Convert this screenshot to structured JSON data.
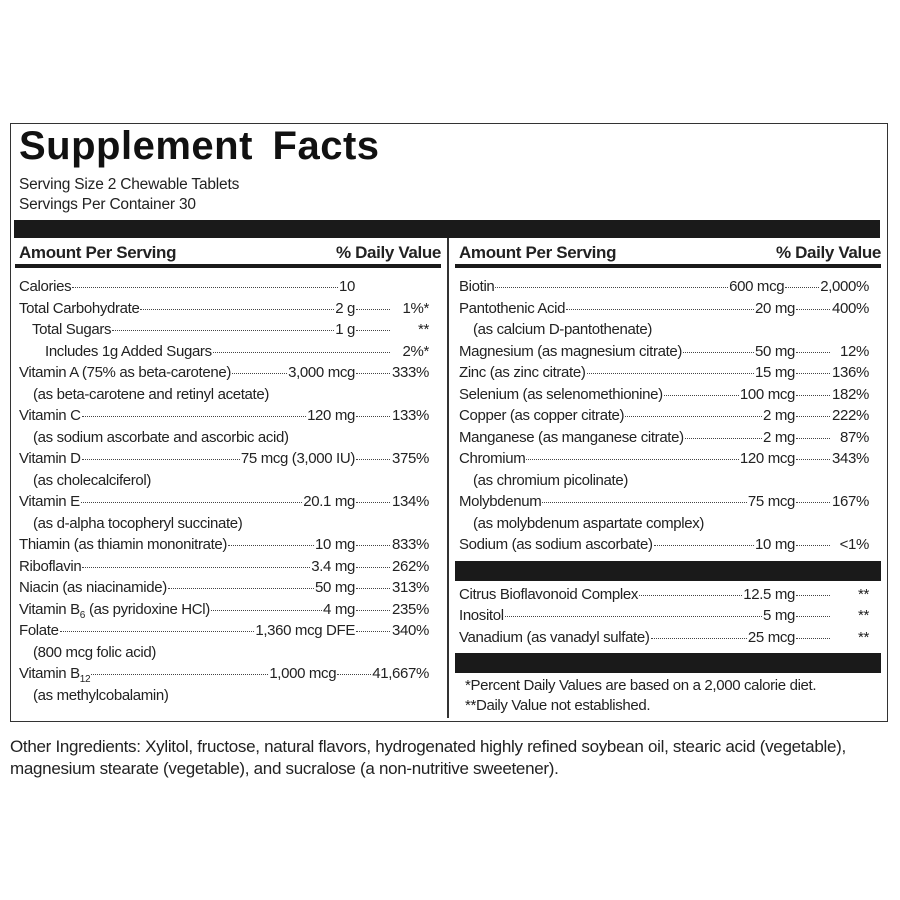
{
  "header": {
    "title": "Supplement Facts",
    "serving_size": "Serving Size 2 Chewable Tablets",
    "servings_per_container": "Servings Per Container 30"
  },
  "columns": [
    {
      "amount_header": "Amount Per Serving",
      "dv_header": "% Daily Value",
      "rows": [
        {
          "name": "Calories",
          "amount": "10"
        },
        {
          "name": "Total Carbohydrate",
          "amount": "2 g",
          "dv": "1%*",
          "sub_rows": [
            {
              "name": "Total Sugars",
              "amount": "1 g",
              "dv": "**",
              "sub_rows": [
                {
                  "name": "Includes 1g Added Sugars",
                  "dv": "2%*"
                }
              ]
            }
          ]
        },
        {
          "name": "Vitamin A (75% as beta-carotene)",
          "amount": "3,000 mcg",
          "dv": "333%",
          "note": "(as beta-carotene and retinyl acetate)"
        },
        {
          "name": "Vitamin C",
          "amount": "120 mg",
          "dv": "133%",
          "note": "(as sodium ascorbate and ascorbic acid)"
        },
        {
          "name": "Vitamin D",
          "amount": "75 mcg (3,000 IU)",
          "dv": "375%",
          "note": "(as cholecalciferol)"
        },
        {
          "name": "Vitamin E",
          "amount": "20.1 mg",
          "dv": "134%",
          "note": "(as d-alpha tocopheryl succinate)"
        },
        {
          "name": "Thiamin (as thiamin mononitrate)",
          "amount": "10 mg",
          "dv": "833%"
        },
        {
          "name": "Riboflavin",
          "amount": "3.4 mg",
          "dv": "262%"
        },
        {
          "name": "Niacin (as niacinamide)",
          "amount": "50 mg",
          "dv": "313%"
        },
        {
          "name": "Vitamin B",
          "subscript": "6",
          "name_suffix": "(as pyridoxine HCl)",
          "amount": "4 mg",
          "dv": "235%"
        },
        {
          "name": "Folate",
          "amount": "1,360 mcg DFE",
          "dv": "340%",
          "note": "(800 mcg folic acid)"
        },
        {
          "name": "Vitamin B",
          "subscript": "12",
          "amount": "1,000 mcg",
          "dv": "41,667%",
          "note": "(as methylcobalamin)"
        }
      ]
    },
    {
      "amount_header": "Amount Per Serving",
      "dv_header": "% Daily Value",
      "rows": [
        {
          "name": "Biotin",
          "amount": "600 mcg",
          "dv": "2,000%"
        },
        {
          "name": "Pantothenic Acid",
          "amount": "20 mg",
          "dv": "400%",
          "note": "(as calcium D-pantothenate)"
        },
        {
          "name": "Magnesium (as magnesium citrate)",
          "amount": "50 mg",
          "dv": "12%"
        },
        {
          "name": "Zinc (as zinc citrate)",
          "amount": "15 mg",
          "dv": "136%"
        },
        {
          "name": "Selenium (as selenomethionine)",
          "amount": "100 mcg",
          "dv": "182%"
        },
        {
          "name": "Copper (as copper citrate)",
          "amount": "2 mg",
          "dv": "222%"
        },
        {
          "name": "Manganese (as manganese citrate)",
          "amount": "2 mg",
          "dv": "87%"
        },
        {
          "name": "Chromium",
          "amount": "120 mcg",
          "dv": "343%",
          "note": "(as chromium picolinate)"
        },
        {
          "name": "Molybdenum",
          "amount": "75 mcg",
          "dv": "167%",
          "note": "(as molybdenum aspartate complex)"
        },
        {
          "name": "Sodium (as sodium ascorbate)",
          "amount": "10 mg",
          "dv": "<1%"
        }
      ],
      "other_rows": [
        {
          "name": "Citrus Bioflavonoid Complex",
          "amount": "12.5 mg",
          "dv": "**"
        },
        {
          "name": "Inositol",
          "amount": "5 mg",
          "dv": "**"
        },
        {
          "name": "Vanadium (as vanadyl sulfate)",
          "amount": "25 mcg",
          "dv": "**"
        }
      ],
      "footnotes": [
        "*Percent Daily Values are based on a 2,000 calorie diet.",
        "**Daily Value not established."
      ]
    }
  ],
  "other_ingredients": "Other Ingredients: Xylitol, fructose, natural flavors, hydrogenated highly refined soybean oil, stearic acid (vegetable), magnesium stearate (vegetable), and sucralose (a non-nutritive sweetener)."
}
